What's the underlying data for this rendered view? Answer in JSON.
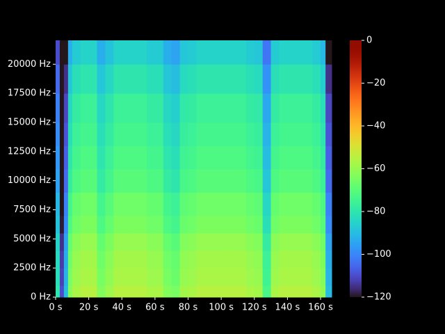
{
  "chart_data": {
    "type": "heatmap",
    "colormap": "turbo",
    "xbins": [
      0,
      2.5,
      5,
      7.5,
      10,
      15,
      20,
      25,
      30,
      35,
      40,
      45,
      50,
      55,
      60,
      65,
      70,
      75,
      80,
      85,
      90,
      95,
      100,
      105,
      110,
      115,
      120,
      125,
      130,
      135,
      140,
      145,
      150,
      155,
      160,
      163,
      166.7
    ],
    "ybins": [
      0,
      1000,
      2500,
      4000,
      5500,
      7000,
      9000,
      11000,
      13000,
      15000,
      17500,
      20000,
      22050
    ],
    "values": [
      [
        -80,
        -110,
        -90,
        -63,
        -57,
        -55,
        -55,
        -63,
        -59,
        -55,
        -55,
        -55,
        -55,
        -57,
        -57,
        -63,
        -65,
        -58,
        -57,
        -55,
        -55,
        -55,
        -55,
        -55,
        -55,
        -57,
        -58,
        -73,
        -57,
        -55,
        -55,
        -55,
        -55,
        -57,
        -61,
        -90
      ],
      [
        -82,
        -112,
        -92,
        -65,
        -59,
        -57,
        -57,
        -65,
        -61,
        -57,
        -57,
        -57,
        -57,
        -59,
        -59,
        -65,
        -67,
        -60,
        -59,
        -57,
        -57,
        -57,
        -57,
        -57,
        -57,
        -59,
        -60,
        -75,
        -59,
        -57,
        -57,
        -57,
        -57,
        -59,
        -63,
        -92
      ],
      [
        -83,
        -113,
        -93,
        -66,
        -60,
        -58,
        -58,
        -66,
        -62,
        -58,
        -58,
        -58,
        -58,
        -60,
        -60,
        -66,
        -68,
        -61,
        -60,
        -58,
        -58,
        -58,
        -58,
        -58,
        -58,
        -60,
        -61,
        -76,
        -60,
        -58,
        -58,
        -58,
        -58,
        -60,
        -64,
        -93
      ],
      [
        -85,
        -115,
        -95,
        -68,
        -62,
        -60,
        -60,
        -68,
        -64,
        -60,
        -60,
        -60,
        -60,
        -62,
        -62,
        -68,
        -70,
        -63,
        -62,
        -60,
        -60,
        -60,
        -60,
        -60,
        -60,
        -62,
        -63,
        -78,
        -62,
        -60,
        -60,
        -60,
        -60,
        -62,
        -66,
        -95
      ],
      [
        -89,
        -119,
        -99,
        -72,
        -66,
        -64,
        -64,
        -72,
        -68,
        -64,
        -64,
        -64,
        -64,
        -66,
        -66,
        -72,
        -74,
        -67,
        -66,
        -64,
        -64,
        -64,
        -64,
        -64,
        -64,
        -66,
        -67,
        -82,
        -66,
        -64,
        -64,
        -64,
        -64,
        -66,
        -70,
        -99
      ],
      [
        -91,
        -120,
        -101,
        -74,
        -68,
        -66,
        -66,
        -74,
        -70,
        -66,
        -66,
        -66,
        -66,
        -68,
        -68,
        -74,
        -76,
        -69,
        -68,
        -66,
        -66,
        -66,
        -66,
        -66,
        -66,
        -68,
        -69,
        -84,
        -68,
        -66,
        -66,
        -66,
        -66,
        -68,
        -72,
        -101
      ],
      [
        -95,
        -120,
        -105,
        -78,
        -72,
        -70,
        -70,
        -78,
        -74,
        -70,
        -70,
        -70,
        -70,
        -72,
        -72,
        -78,
        -80,
        -73,
        -72,
        -70,
        -70,
        -70,
        -70,
        -70,
        -70,
        -72,
        -73,
        -88,
        -72,
        -70,
        -70,
        -70,
        -70,
        -72,
        -76,
        -105
      ],
      [
        -97,
        -120,
        -107,
        -80,
        -74,
        -72,
        -72,
        -80,
        -76,
        -72,
        -72,
        -72,
        -72,
        -74,
        -74,
        -80,
        -82,
        -75,
        -74,
        -72,
        -72,
        -72,
        -72,
        -72,
        -72,
        -74,
        -75,
        -90,
        -74,
        -72,
        -72,
        -72,
        -72,
        -74,
        -78,
        -107
      ],
      [
        -99,
        -120,
        -109,
        -82,
        -76,
        -74,
        -74,
        -82,
        -78,
        -74,
        -74,
        -74,
        -74,
        -76,
        -76,
        -82,
        -84,
        -77,
        -76,
        -74,
        -74,
        -74,
        -74,
        -74,
        -74,
        -76,
        -77,
        -92,
        -76,
        -74,
        -74,
        -74,
        -74,
        -76,
        -80,
        -109
      ],
      [
        -101,
        -120,
        -111,
        -84,
        -78,
        -76,
        -76,
        -84,
        -80,
        -76,
        -76,
        -76,
        -76,
        -78,
        -78,
        -84,
        -86,
        -79,
        -78,
        -76,
        -76,
        -76,
        -76,
        -76,
        -76,
        -78,
        -79,
        -94,
        -78,
        -76,
        -76,
        -76,
        -76,
        -78,
        -82,
        -111
      ],
      [
        -105,
        -120,
        -115,
        -88,
        -82,
        -80,
        -80,
        -88,
        -84,
        -80,
        -80,
        -80,
        -80,
        -82,
        -82,
        -88,
        -90,
        -83,
        -82,
        -80,
        -80,
        -80,
        -80,
        -80,
        -80,
        -82,
        -83,
        -98,
        -82,
        -80,
        -80,
        -80,
        -80,
        -82,
        -86,
        -115
      ],
      [
        -110,
        -120,
        -120,
        -93,
        -87,
        -85,
        -85,
        -93,
        -89,
        -85,
        -85,
        -85,
        -85,
        -87,
        -87,
        -93,
        -95,
        -88,
        -87,
        -85,
        -85,
        -85,
        -85,
        -85,
        -85,
        -87,
        -88,
        -103,
        -87,
        -85,
        -85,
        -85,
        -85,
        -87,
        -91,
        -120
      ]
    ],
    "xlim": [
      0,
      166.7
    ],
    "ylim": [
      0,
      22050
    ],
    "xticks": [
      {
        "value": 0,
        "label": "0 s"
      },
      {
        "value": 20,
        "label": "20 s"
      },
      {
        "value": 40,
        "label": "40 s"
      },
      {
        "value": 60,
        "label": "60 s"
      },
      {
        "value": 80,
        "label": "80 s"
      },
      {
        "value": 100,
        "label": "100 s"
      },
      {
        "value": 120,
        "label": "120 s"
      },
      {
        "value": 140,
        "label": "140 s"
      },
      {
        "value": 160,
        "label": "160 s"
      }
    ],
    "yticks": [
      {
        "value": 0,
        "label": "0 Hz"
      },
      {
        "value": 2500,
        "label": "2500 Hz"
      },
      {
        "value": 5000,
        "label": "5000 Hz"
      },
      {
        "value": 7500,
        "label": "7500 Hz"
      },
      {
        "value": 10000,
        "label": "10000 Hz"
      },
      {
        "value": 12500,
        "label": "12500 Hz"
      },
      {
        "value": 15000,
        "label": "15000 Hz"
      },
      {
        "value": 17500,
        "label": "17500 Hz"
      },
      {
        "value": 20000,
        "label": "20000 Hz"
      }
    ],
    "clim": [
      -120,
      0
    ],
    "cticks": [
      0,
      {
        "value": -20,
        "label": "−20"
      },
      {
        "value": -40,
        "label": "−40"
      },
      {
        "value": -60,
        "label": "−60"
      },
      {
        "value": -80,
        "label": "−80"
      },
      {
        "value": -100,
        "label": "−100"
      },
      {
        "value": -120,
        "label": "−120"
      }
    ]
  }
}
